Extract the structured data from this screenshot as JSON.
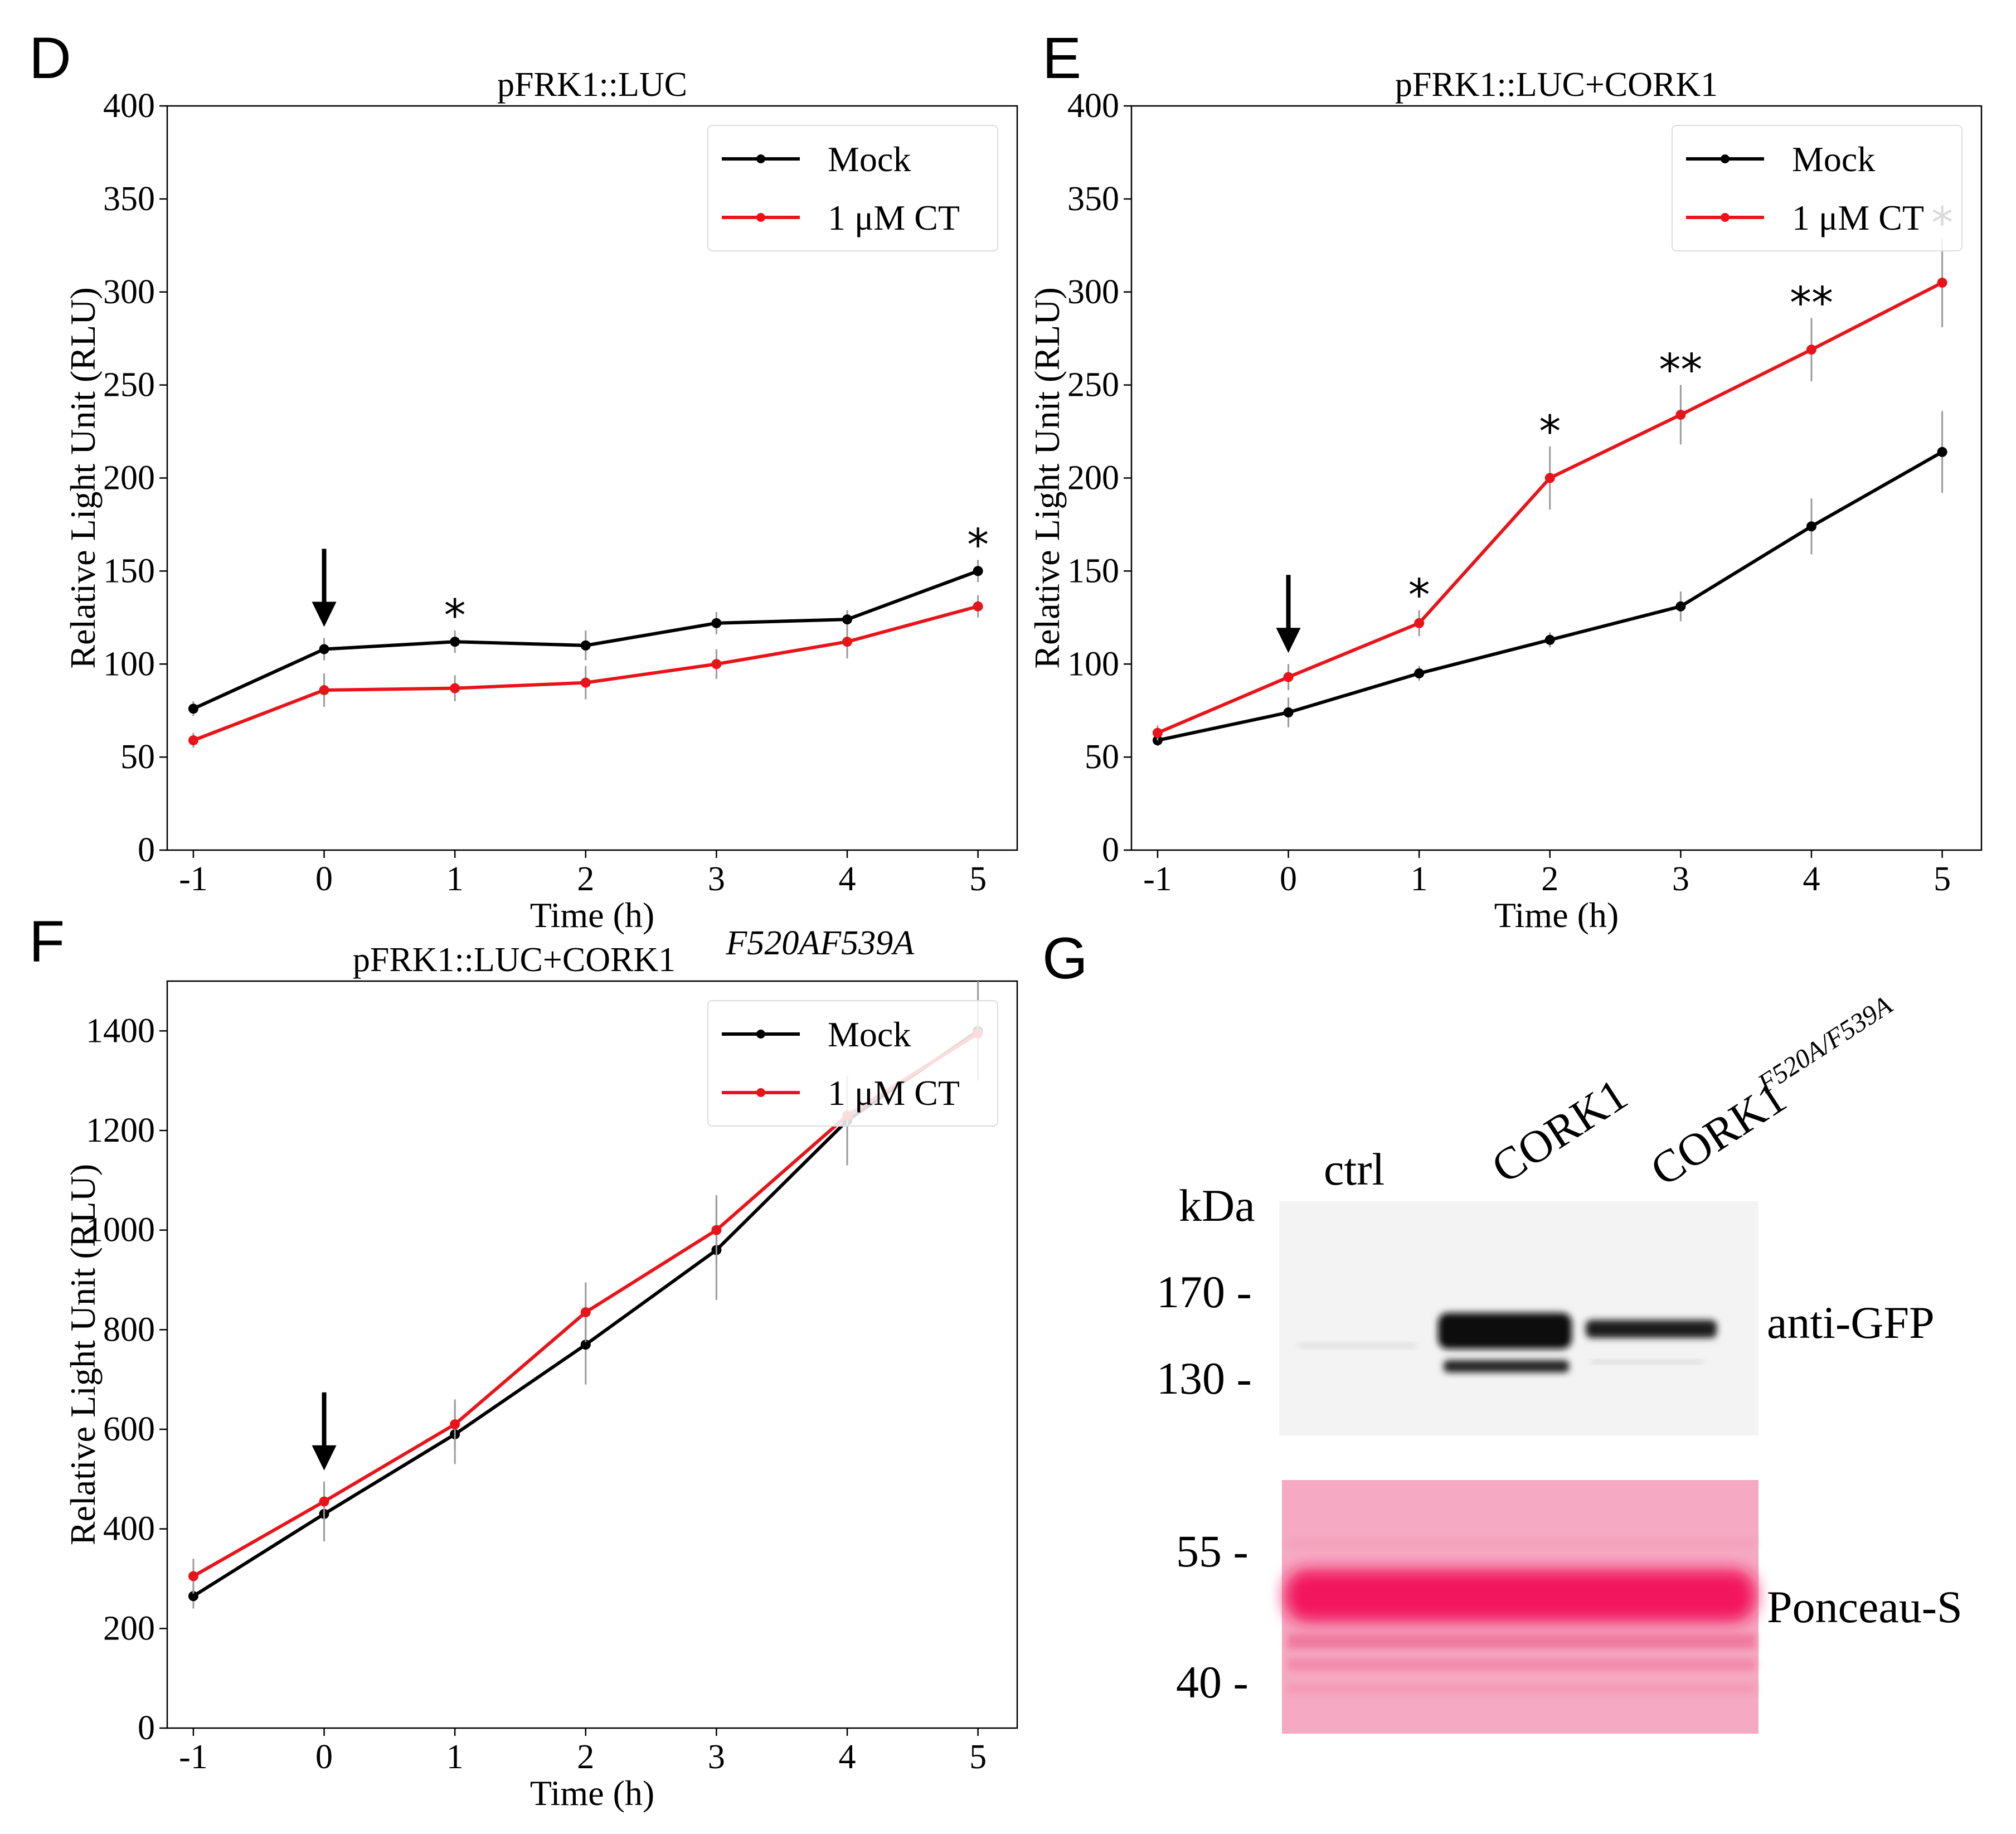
{
  "figure": {
    "panel_letters": {
      "D": "D",
      "E": "E",
      "F": "F",
      "G": "G"
    },
    "colors": {
      "mock": "#000000",
      "ct": "#e8141a",
      "error": "#9a9a9a",
      "ponceau": "#f2165e",
      "ponceau_bg": "#f7a9c3"
    }
  },
  "chart_data": [
    {
      "id": "D",
      "type": "line",
      "title": "pFRK1::LUC",
      "xlabel": "Time (h)",
      "ylabel": "Relative Light Unit (RLU)",
      "x": [
        -1,
        0,
        1,
        2,
        3,
        4,
        5
      ],
      "x_tick_labels": [
        "-1",
        "0",
        "1",
        "2",
        "3",
        "4",
        "5"
      ],
      "ylim": [
        0,
        400
      ],
      "y_ticks": [
        0,
        50,
        100,
        150,
        200,
        250,
        300,
        350,
        400
      ],
      "legend": "top-right",
      "series": [
        {
          "name": "Mock",
          "color": "#000000",
          "values": [
            76,
            108,
            112,
            110,
            122,
            124,
            150
          ],
          "errors": [
            4,
            6,
            6,
            8,
            6,
            5,
            6
          ]
        },
        {
          "name": "1 μM CT",
          "color": "#e8141a",
          "values": [
            59,
            86,
            87,
            90,
            100,
            112,
            131
          ],
          "errors": [
            4,
            9,
            7,
            9,
            8,
            9,
            6
          ]
        }
      ],
      "arrow_at": 0,
      "annotations": [
        {
          "x": 1,
          "text": "*",
          "series": 0
        },
        {
          "x": 5,
          "text": "*",
          "series": 0
        }
      ]
    },
    {
      "id": "E",
      "type": "line",
      "title": "pFRK1::LUC+CORK1",
      "xlabel": "Time (h)",
      "ylabel": "Relative Light Unit (RLU)",
      "x": [
        -1,
        0,
        1,
        2,
        3,
        4,
        5
      ],
      "x_tick_labels": [
        "-1",
        "0",
        "1",
        "2",
        "3",
        "4",
        "5"
      ],
      "ylim": [
        0,
        400
      ],
      "y_ticks": [
        0,
        50,
        100,
        150,
        200,
        250,
        300,
        350,
        400
      ],
      "legend": "top-right",
      "series": [
        {
          "name": "Mock",
          "color": "#000000",
          "values": [
            59,
            74,
            95,
            113,
            131,
            174,
            214
          ],
          "errors": [
            3,
            8,
            4,
            4,
            8,
            15,
            22
          ]
        },
        {
          "name": "1 μM CT",
          "color": "#e8141a",
          "values": [
            63,
            93,
            122,
            200,
            234,
            269,
            305
          ],
          "errors": [
            4,
            7,
            7,
            17,
            16,
            17,
            24
          ]
        }
      ],
      "arrow_at": 0,
      "annotations": [
        {
          "x": 1,
          "text": "*",
          "series": 1
        },
        {
          "x": 2,
          "text": "*",
          "series": 1
        },
        {
          "x": 3,
          "text": "**",
          "series": 1
        },
        {
          "x": 4,
          "text": "**",
          "series": 1
        },
        {
          "x": 5,
          "text": "*",
          "series": 1
        }
      ]
    },
    {
      "id": "F",
      "type": "line",
      "title": "pFRK1::LUC+CORK1",
      "title_superscript": "F520AF539A",
      "xlabel": "Time (h)",
      "ylabel": "Relative Light Unit (RLU)",
      "x": [
        -1,
        0,
        1,
        2,
        3,
        4,
        5
      ],
      "x_tick_labels": [
        "-1",
        "0",
        "1",
        "2",
        "3",
        "4",
        "5"
      ],
      "ylim": [
        0,
        1500
      ],
      "y_ticks": [
        0,
        200,
        400,
        600,
        800,
        1000,
        1200,
        1400
      ],
      "legend": "top-right",
      "series": [
        {
          "name": "Mock",
          "color": "#000000",
          "values": [
            265,
            430,
            590,
            770,
            960,
            1220,
            1400
          ],
          "errors": [
            25,
            55,
            60,
            80,
            100,
            90,
            100
          ]
        },
        {
          "name": "1 μM CT",
          "color": "#e8141a",
          "values": [
            305,
            455,
            610,
            835,
            1000,
            1230,
            1395
          ],
          "errors": [
            35,
            40,
            50,
            60,
            70,
            60,
            70
          ]
        }
      ],
      "arrow_at": 0,
      "annotations": []
    }
  ],
  "blot": {
    "lanes": [
      "ctrl",
      "CORK1",
      "CORK1"
    ],
    "lane3_superscript": "F520A/F539A",
    "kda_label": "kDa",
    "markers_top": [
      "170 -",
      "130 -"
    ],
    "markers_bottom": [
      "55 -",
      "40 -"
    ],
    "top_label": "anti-GFP",
    "bottom_label": "Ponceau-S"
  }
}
